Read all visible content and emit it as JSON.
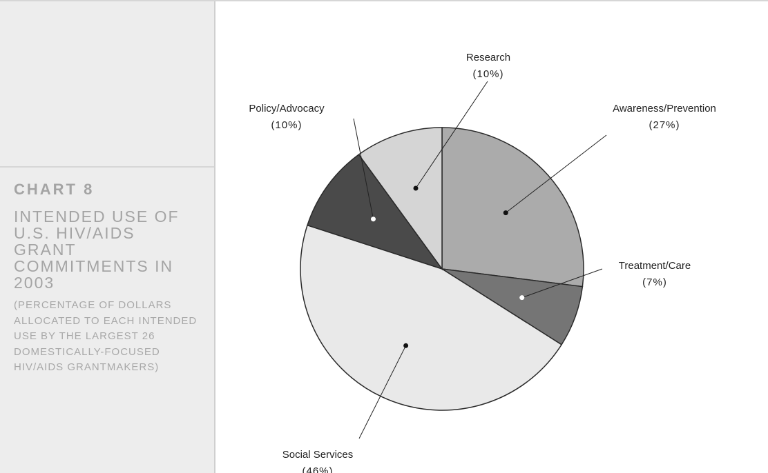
{
  "chart_data": {
    "type": "pie",
    "title": "CHART 8",
    "subtitle": "INTENDED USE OF U.S. HIV/AIDS GRANT COMMITMENTS IN 2003",
    "note": "(PERCENTAGE OF DOLLARS ALLOCATED TO EACH INTENDED USE BY THE LARGEST 26 DOMESTICALLY-FOCUSED HIV/AIDS GRANTMAKERS)",
    "categories": [
      "Awareness/Prevention",
      "Treatment/Care",
      "Social Services",
      "Policy/Advocacy",
      "Research"
    ],
    "values": [
      27,
      7,
      46,
      10,
      10
    ],
    "value_labels": [
      "(27%)",
      "(7%)",
      "(46%)",
      "(10%)",
      "(10%)"
    ],
    "colors": [
      "#ababab",
      "#757575",
      "#e9e9e9",
      "#4a4a4a",
      "#d5d5d5"
    ]
  }
}
